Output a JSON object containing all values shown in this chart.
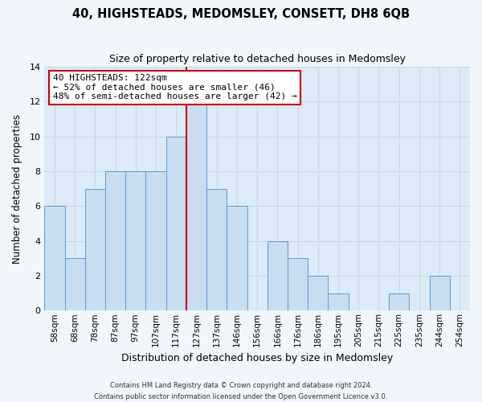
{
  "title": "40, HIGHSTEADS, MEDOMSLEY, CONSETT, DH8 6QB",
  "subtitle": "Size of property relative to detached houses in Medomsley",
  "xlabel": "Distribution of detached houses by size in Medomsley",
  "ylabel": "Number of detached properties",
  "bin_labels": [
    "58sqm",
    "68sqm",
    "78sqm",
    "87sqm",
    "97sqm",
    "107sqm",
    "117sqm",
    "127sqm",
    "137sqm",
    "146sqm",
    "156sqm",
    "166sqm",
    "176sqm",
    "186sqm",
    "195sqm",
    "205sqm",
    "215sqm",
    "225sqm",
    "235sqm",
    "244sqm",
    "254sqm"
  ],
  "bar_heights": [
    6,
    3,
    7,
    8,
    8,
    8,
    10,
    12,
    7,
    6,
    0,
    4,
    3,
    2,
    1,
    0,
    0,
    1,
    0,
    2,
    0
  ],
  "bar_color": "#c8ddf0",
  "bar_edge_color": "#5b9bd5",
  "red_line_bin_index": 6.5,
  "annotation_title": "40 HIGHSTEADS: 122sqm",
  "annotation_line1": "← 52% of detached houses are smaller (46)",
  "annotation_line2": "48% of semi-detached houses are larger (42) →",
  "annotation_box_color": "#ffffff",
  "annotation_box_edge": "#cc0000",
  "ylim": [
    0,
    14
  ],
  "yticks": [
    0,
    2,
    4,
    6,
    8,
    10,
    12,
    14
  ],
  "footer_line1": "Contains HM Land Registry data © Crown copyright and database right 2024.",
  "footer_line2": "Contains public sector information licensed under the Open Government Licence v3.0.",
  "grid_color": "#c8d8e8",
  "background_color": "#ddeaf8",
  "fig_background": "#f0f6fc"
}
